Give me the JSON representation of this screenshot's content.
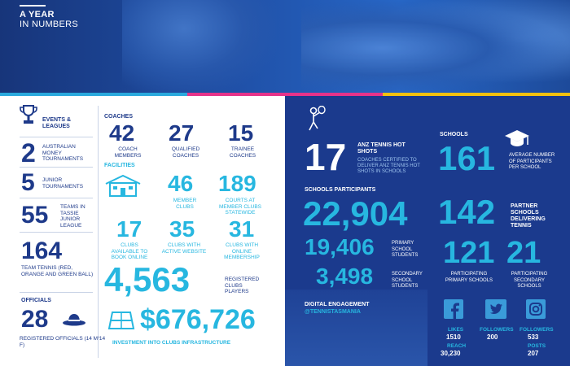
{
  "header": {
    "title_line1": "A YEAR",
    "title_line2": "IN NUMBERS"
  },
  "events": {
    "heading": "EVENTS & LEAGUES",
    "items": [
      {
        "value": "2",
        "label": "AUSTRALIAN MONEY TOURNAMENTS"
      },
      {
        "value": "5",
        "label": "JUNIOR TOURNAMENTS"
      },
      {
        "value": "55",
        "label": "TEAMS IN TASSIE JUNIOR LEAGUE"
      },
      {
        "value": "164",
        "label": "TEAM TENNIS (RED, ORANGE AND GREEN BALL)"
      }
    ]
  },
  "officials": {
    "heading": "OFFICIALS",
    "value": "28",
    "label": "REGISTERED OFFICIALS (14 M/14 F)"
  },
  "coaches": {
    "heading": "COACHES",
    "items": [
      {
        "value": "42",
        "label": "COACH MEMBERS"
      },
      {
        "value": "27",
        "label": "QUALIFIED COACHES"
      },
      {
        "value": "15",
        "label": "TRAINEE COACHES"
      }
    ]
  },
  "facilities": {
    "heading": "FACILITIES",
    "member_clubs": {
      "value": "46",
      "label": "MEMBER CLUBS"
    },
    "courts": {
      "value": "189",
      "label": "COURTS AT MEMBER CLUBS STATEWIDE"
    },
    "online": [
      {
        "value": "17",
        "label": "CLUBS AVAILABLE TO BOOK ONLINE"
      },
      {
        "value": "35",
        "label": "CLUBS WITH ACTIVE WEBSITE"
      },
      {
        "value": "31",
        "label": "CLUBS WITH ONLINE MEMBERSHIP"
      }
    ],
    "players": {
      "value": "4,563",
      "label": "REGISTERED CLUBS PLAYERS"
    },
    "investment": {
      "value": "$676,726",
      "label": "INVESTMENT INTO CLUBS INFRASTRUCTURE"
    }
  },
  "hotshots": {
    "value": "17",
    "title": "ANZ TENNIS HOT SHOTS",
    "label": "COACHES CERTIFIED TO DELIVER ANZ TENNIS HOT SHOTS IN SCHOOLS"
  },
  "schools_participants": {
    "heading": "SCHOOLS PARTICIPANTS",
    "total": "22,904",
    "primary": {
      "value": "19,406",
      "label": "PRIMARY SCHOOL STUDENTS"
    },
    "secondary": {
      "value": "3,498",
      "label": "SECONDARY SCHOOL STUDENTS"
    }
  },
  "schools": {
    "heading": "SCHOOLS",
    "avg": {
      "value": "161",
      "label": "AVERAGE NUMBER OF PARTICIPANTS PER SCHOOL"
    },
    "partner": {
      "value": "142",
      "label": "PARTNER SCHOOLS DELIVERING TENNIS"
    },
    "primary": {
      "value": "121",
      "label": "PARTICIPATING PRIMARY SCHOOLS"
    },
    "secondary": {
      "value": "21",
      "label": "PARTICIPATING SECONDARY SCHOOLS"
    }
  },
  "digital": {
    "heading": "DIGITAL ENGAGEMENT",
    "handle": "@TENNISTASMANIA",
    "facebook": {
      "likes_label": "LIKES",
      "likes": "1510",
      "reach_label": "REACH",
      "reach": "30,230"
    },
    "twitter": {
      "followers_label": "FOLLOWERS",
      "followers": "200"
    },
    "instagram": {
      "followers_label": "FOLLOWERS",
      "followers": "533",
      "posts_label": "POSTS",
      "posts": "207"
    }
  },
  "colors": {
    "navy": "#1e3a8a",
    "cyan": "#27b7e0",
    "panel": "#1b3a8d",
    "pink": "#e6338a",
    "yellow": "#f3c10f"
  }
}
